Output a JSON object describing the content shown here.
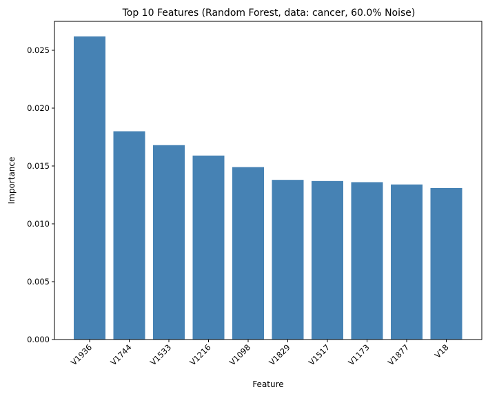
{
  "chart_data": {
    "type": "bar",
    "title": "Top 10 Features (Random Forest, data: cancer, 60.0% Noise)",
    "xlabel": "Feature",
    "ylabel": "Importance",
    "categories": [
      "V1936",
      "V1744",
      "V1533",
      "V1216",
      "V1098",
      "V1829",
      "V1517",
      "V1173",
      "V1877",
      "V18"
    ],
    "values": [
      0.0262,
      0.018,
      0.0168,
      0.0159,
      0.0149,
      0.0138,
      0.0137,
      0.0136,
      0.0134,
      0.0131
    ],
    "ylim": [
      0,
      0.0275
    ],
    "yticks": [
      0.0,
      0.005,
      0.01,
      0.015,
      0.02,
      0.025
    ],
    "ytick_labels": [
      "0.000",
      "0.005",
      "0.010",
      "0.015",
      "0.020",
      "0.025"
    ],
    "bar_color": "#4682b4",
    "grid": false,
    "xtick_rotation": "45"
  }
}
